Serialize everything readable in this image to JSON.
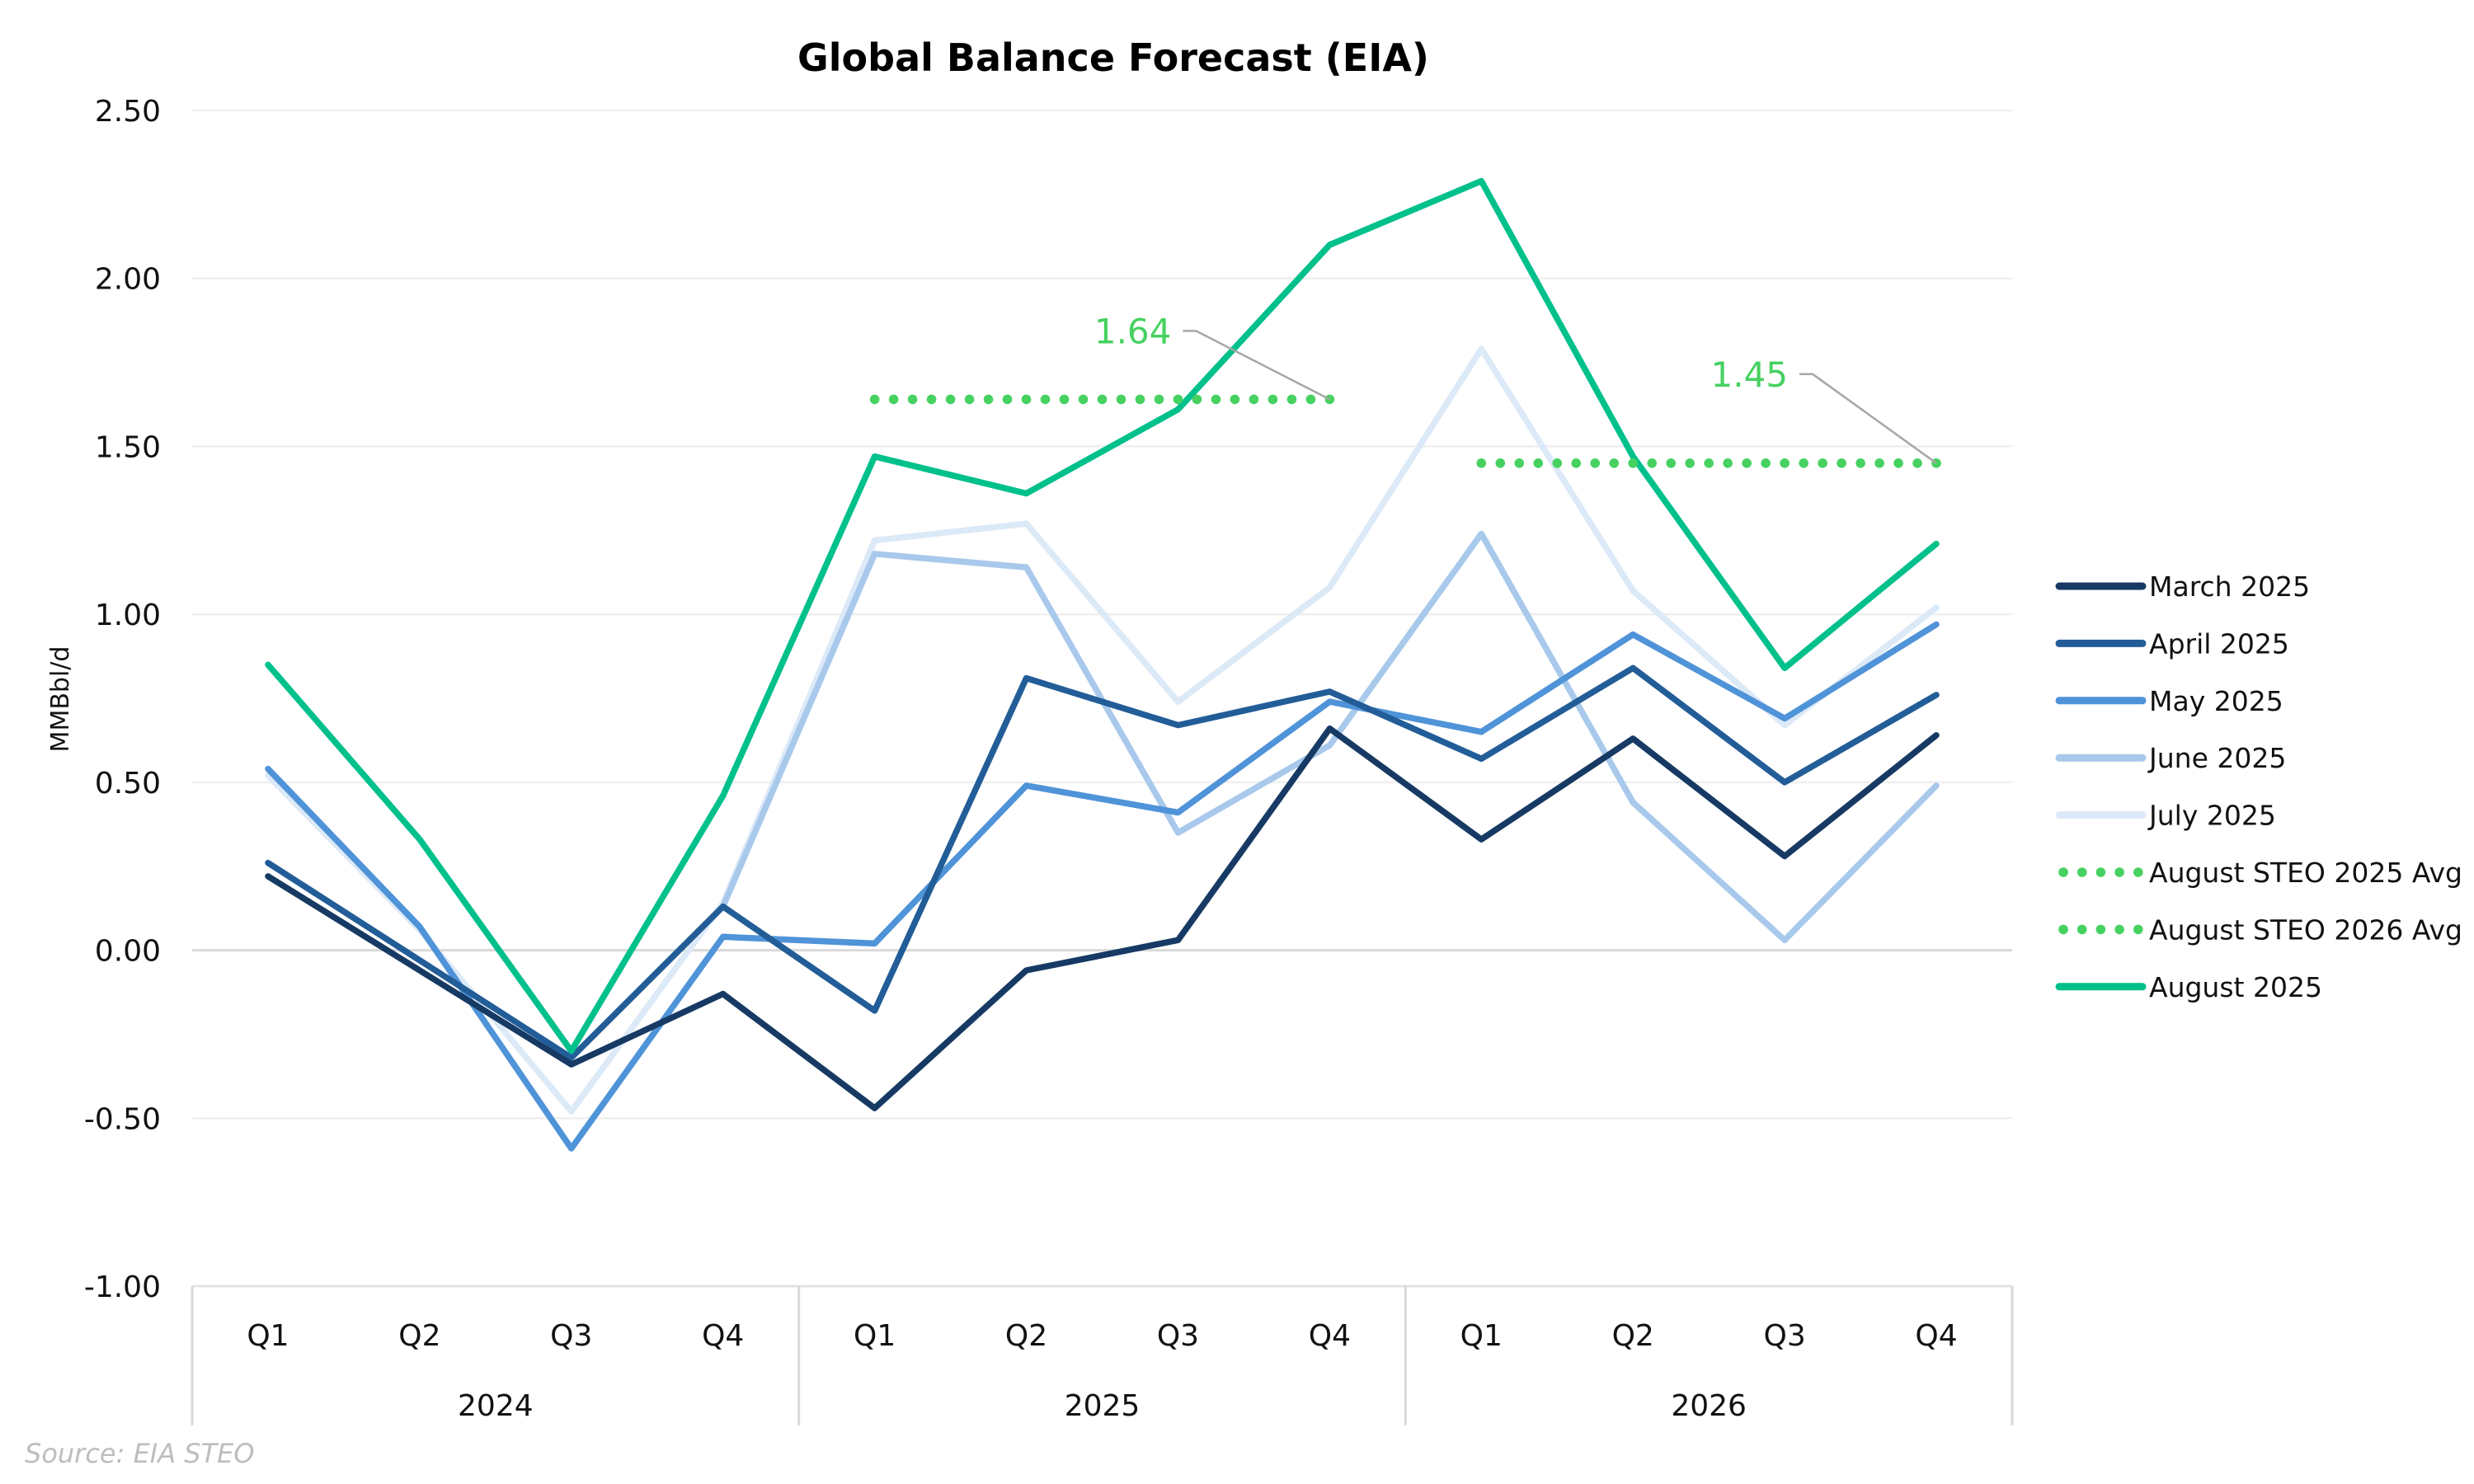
{
  "chart_data": {
    "type": "line",
    "title": "Global Balance Forecast (EIA)",
    "ylabel": "MMBbl/d",
    "xlabel": "",
    "ylim": [
      -1.0,
      2.5
    ],
    "yticks": [
      "2.50",
      "2.00",
      "1.50",
      "1.00",
      "0.50",
      "0.00",
      "-0.50",
      "-1.00"
    ],
    "ytick_values": [
      2.5,
      2.0,
      1.5,
      1.0,
      0.5,
      0.0,
      -0.5,
      -1.0
    ],
    "grid": true,
    "categories": [
      "Q1",
      "Q2",
      "Q3",
      "Q4",
      "Q1",
      "Q2",
      "Q3",
      "Q4",
      "Q1",
      "Q2",
      "Q3",
      "Q4"
    ],
    "category_groups": [
      {
        "label": "2024",
        "count": 4
      },
      {
        "label": "2025",
        "count": 4
      },
      {
        "label": "2026",
        "count": 4
      }
    ],
    "series": [
      {
        "name": "March 2025",
        "color": "#163a63",
        "style": "solid",
        "values": [
          0.22,
          -0.06,
          -0.34,
          -0.13,
          -0.47,
          -0.06,
          0.03,
          0.66,
          0.33,
          0.63,
          0.28,
          0.64
        ]
      },
      {
        "name": "April 2025",
        "color": "#225d98",
        "style": "solid",
        "values": [
          0.26,
          -0.03,
          -0.32,
          0.13,
          -0.18,
          0.81,
          0.67,
          0.77,
          0.57,
          0.84,
          0.5,
          0.76
        ]
      },
      {
        "name": "May 2025",
        "color": "#4f93d8",
        "style": "solid",
        "values": [
          0.54,
          0.07,
          -0.59,
          0.04,
          0.02,
          0.49,
          0.41,
          0.74,
          0.65,
          0.94,
          0.69,
          0.97
        ]
      },
      {
        "name": "June 2025",
        "color": "#a8c9eb",
        "style": "solid",
        "values": [
          null,
          null,
          null,
          0.13,
          1.18,
          1.14,
          0.35,
          0.61,
          1.24,
          0.44,
          0.03,
          0.49
        ]
      },
      {
        "name": "July 2025",
        "color": "#dce9f7",
        "style": "solid",
        "values": [
          0.52,
          0.06,
          -0.48,
          0.14,
          1.22,
          1.27,
          0.74,
          1.08,
          1.79,
          1.07,
          0.67,
          1.02
        ]
      },
      {
        "name": "August STEO 2025 Avg",
        "color": "#46d160",
        "style": "dotted",
        "values": [
          null,
          null,
          null,
          null,
          1.64,
          1.64,
          1.64,
          1.64,
          null,
          null,
          null,
          null
        ]
      },
      {
        "name": "August STEO 2026 Avg",
        "color": "#46d160",
        "style": "dotted",
        "values": [
          null,
          null,
          null,
          null,
          null,
          null,
          null,
          null,
          1.45,
          1.45,
          1.45,
          1.45
        ]
      },
      {
        "name": "August 2025",
        "color": "#00c08b",
        "style": "solid",
        "values": [
          0.85,
          0.33,
          -0.3,
          0.46,
          1.47,
          1.36,
          1.61,
          2.1,
          2.29,
          1.47,
          0.84,
          1.21
        ]
      }
    ],
    "annotations": [
      {
        "text": "1.64",
        "series": "August STEO 2025 Avg",
        "color": "#46d160"
      },
      {
        "text": "1.45",
        "series": "August STEO 2026 Avg",
        "color": "#46d160"
      }
    ],
    "legend_position": "right",
    "source": "Source: EIA STEO"
  }
}
